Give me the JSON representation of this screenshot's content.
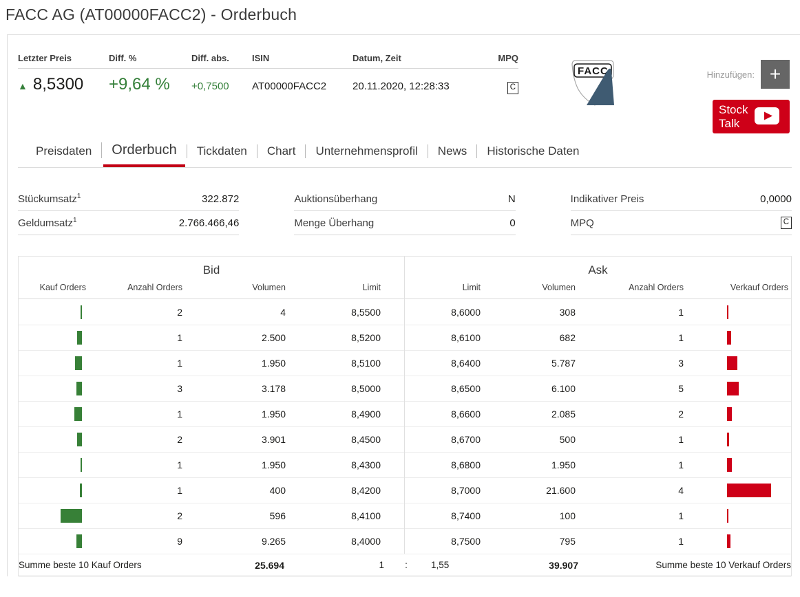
{
  "page": {
    "title": "FACC AG (AT00000FACC2) - Orderbuch"
  },
  "quote": {
    "labels": [
      "Letzter Preis",
      "Diff. %",
      "Diff. abs.",
      "ISIN",
      "Datum, Zeit",
      "MPQ"
    ],
    "arrow_up": "▲",
    "last_price": "8,5300",
    "diff_pct": "+9,64 %",
    "diff_abs": "+0,7500",
    "isin": "AT00000FACC2",
    "datetime": "20.11.2020, 12:28:33",
    "mpq": "C"
  },
  "header_right": {
    "logo_text": "FACC",
    "add_label": "Hinzufügen:",
    "plus_label": "+",
    "stock_talk_line1": "Stock",
    "stock_talk_line2": "Talk"
  },
  "tabs": [
    {
      "label": "Preisdaten",
      "active": false
    },
    {
      "label": "Orderbuch",
      "active": true
    },
    {
      "label": "Tickdaten",
      "active": false
    },
    {
      "label": "Chart",
      "active": false
    },
    {
      "label": "Unternehmensprofil",
      "active": false
    },
    {
      "label": "News",
      "active": false
    },
    {
      "label": "Historische Daten",
      "active": false
    }
  ],
  "stats": [
    {
      "label": "Stückumsatz",
      "sup": "1",
      "value": "322.872"
    },
    {
      "label": "Geldumsatz",
      "sup": "1",
      "value": "2.766.466,46"
    },
    {
      "label": "Auktionsüberhang",
      "sup": "",
      "value": "N"
    },
    {
      "label": "Menge Überhang",
      "sup": "",
      "value": "0"
    },
    {
      "label": "Indikativer Preis",
      "sup": "",
      "value": "0,0000"
    },
    {
      "label": "MPQ",
      "sup": "",
      "value": "C"
    }
  ],
  "orderbook": {
    "bid": {
      "title": "Bid",
      "columns": [
        "Kauf Orders",
        "Anzahl Orders",
        "Volumen",
        "Limit"
      ],
      "rows": [
        {
          "orders": "2",
          "volume": "4",
          "limit": "8,5500",
          "bar": 2
        },
        {
          "orders": "1",
          "volume": "2.500",
          "limit": "8,5200",
          "bar": 7
        },
        {
          "orders": "1",
          "volume": "1.950",
          "limit": "8,5100",
          "bar": 10
        },
        {
          "orders": "3",
          "volume": "3.178",
          "limit": "8,5000",
          "bar": 8
        },
        {
          "orders": "1",
          "volume": "1.950",
          "limit": "8,4900",
          "bar": 11
        },
        {
          "orders": "2",
          "volume": "3.901",
          "limit": "8,4500",
          "bar": 7
        },
        {
          "orders": "1",
          "volume": "1.950",
          "limit": "8,4300",
          "bar": 2
        },
        {
          "orders": "1",
          "volume": "400",
          "limit": "8,4200",
          "bar": 3
        },
        {
          "orders": "2",
          "volume": "596",
          "limit": "8,4100",
          "bar": 31
        },
        {
          "orders": "9",
          "volume": "9.265",
          "limit": "8,4000",
          "bar": 8
        }
      ]
    },
    "ask": {
      "title": "Ask",
      "columns": [
        "Limit",
        "Volumen",
        "Anzahl Orders",
        "Verkauf Orders"
      ],
      "rows": [
        {
          "limit": "8,6000",
          "volume": "308",
          "orders": "1",
          "bar": 2
        },
        {
          "limit": "8,6100",
          "volume": "682",
          "orders": "1",
          "bar": 6
        },
        {
          "limit": "8,6400",
          "volume": "5.787",
          "orders": "3",
          "bar": 15
        },
        {
          "limit": "8,6500",
          "volume": "6.100",
          "orders": "5",
          "bar": 17
        },
        {
          "limit": "8,6600",
          "volume": "2.085",
          "orders": "2",
          "bar": 7
        },
        {
          "limit": "8,6700",
          "volume": "500",
          "orders": "1",
          "bar": 3
        },
        {
          "limit": "8,6800",
          "volume": "1.950",
          "orders": "1",
          "bar": 7
        },
        {
          "limit": "8,7000",
          "volume": "21.600",
          "orders": "4",
          "bar": 64
        },
        {
          "limit": "8,7400",
          "volume": "100",
          "orders": "1",
          "bar": 2
        },
        {
          "limit": "8,7500",
          "volume": "795",
          "orders": "1",
          "bar": 5
        }
      ]
    },
    "footer": {
      "bid_label": "Summe beste 10 Kauf Orders",
      "bid_sum": "25.694",
      "ratio_left": "1",
      "ratio_sep": ":",
      "ratio_right": "1,55",
      "ask_sum": "39.907",
      "ask_label": "Summe beste 10 Verkauf Orders"
    }
  },
  "colors": {
    "green": "#35803a",
    "bar_green": "#378037",
    "red": "#ce0018",
    "tab_underline_red": "#c20117"
  }
}
